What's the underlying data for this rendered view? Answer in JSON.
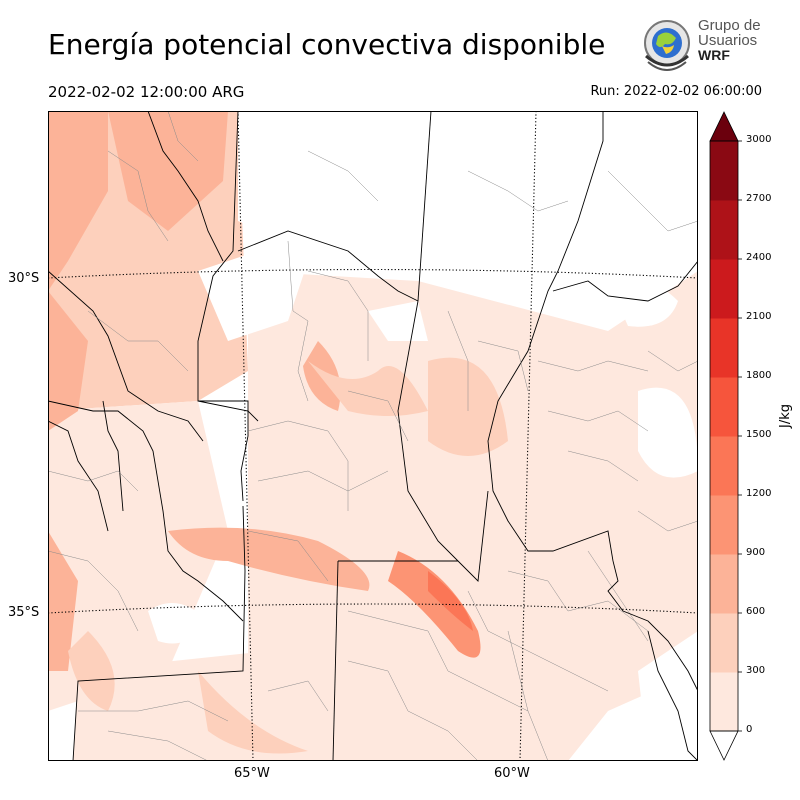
{
  "title": "Energía potencial convectiva disponible",
  "valid_time": "2022-02-02 12:00:00 ARG",
  "run_time": "Run: 2022-02-02 06:00:00",
  "logo": {
    "line1": "Grupo de",
    "line2": "Usuarios",
    "line3": "WRF"
  },
  "map": {
    "lat_labels": [
      "30°S",
      "35°S"
    ],
    "lon_labels": [
      "65°W",
      "60°W"
    ]
  },
  "colorbar": {
    "unit": "J/kg",
    "ticks": [
      "0",
      "300",
      "600",
      "900",
      "1200",
      "1500",
      "1800",
      "2100",
      "2400",
      "2700",
      "3000"
    ],
    "colors": [
      "#fee8de",
      "#fdd0bc",
      "#fcb398",
      "#fc9474",
      "#fb7656",
      "#f6553c",
      "#e83428",
      "#cc1a1d",
      "#ae1218",
      "#8a0913",
      "#6b000d"
    ]
  },
  "colors": {
    "land": "#ffffff",
    "border": "#000000",
    "province": "#808080"
  }
}
